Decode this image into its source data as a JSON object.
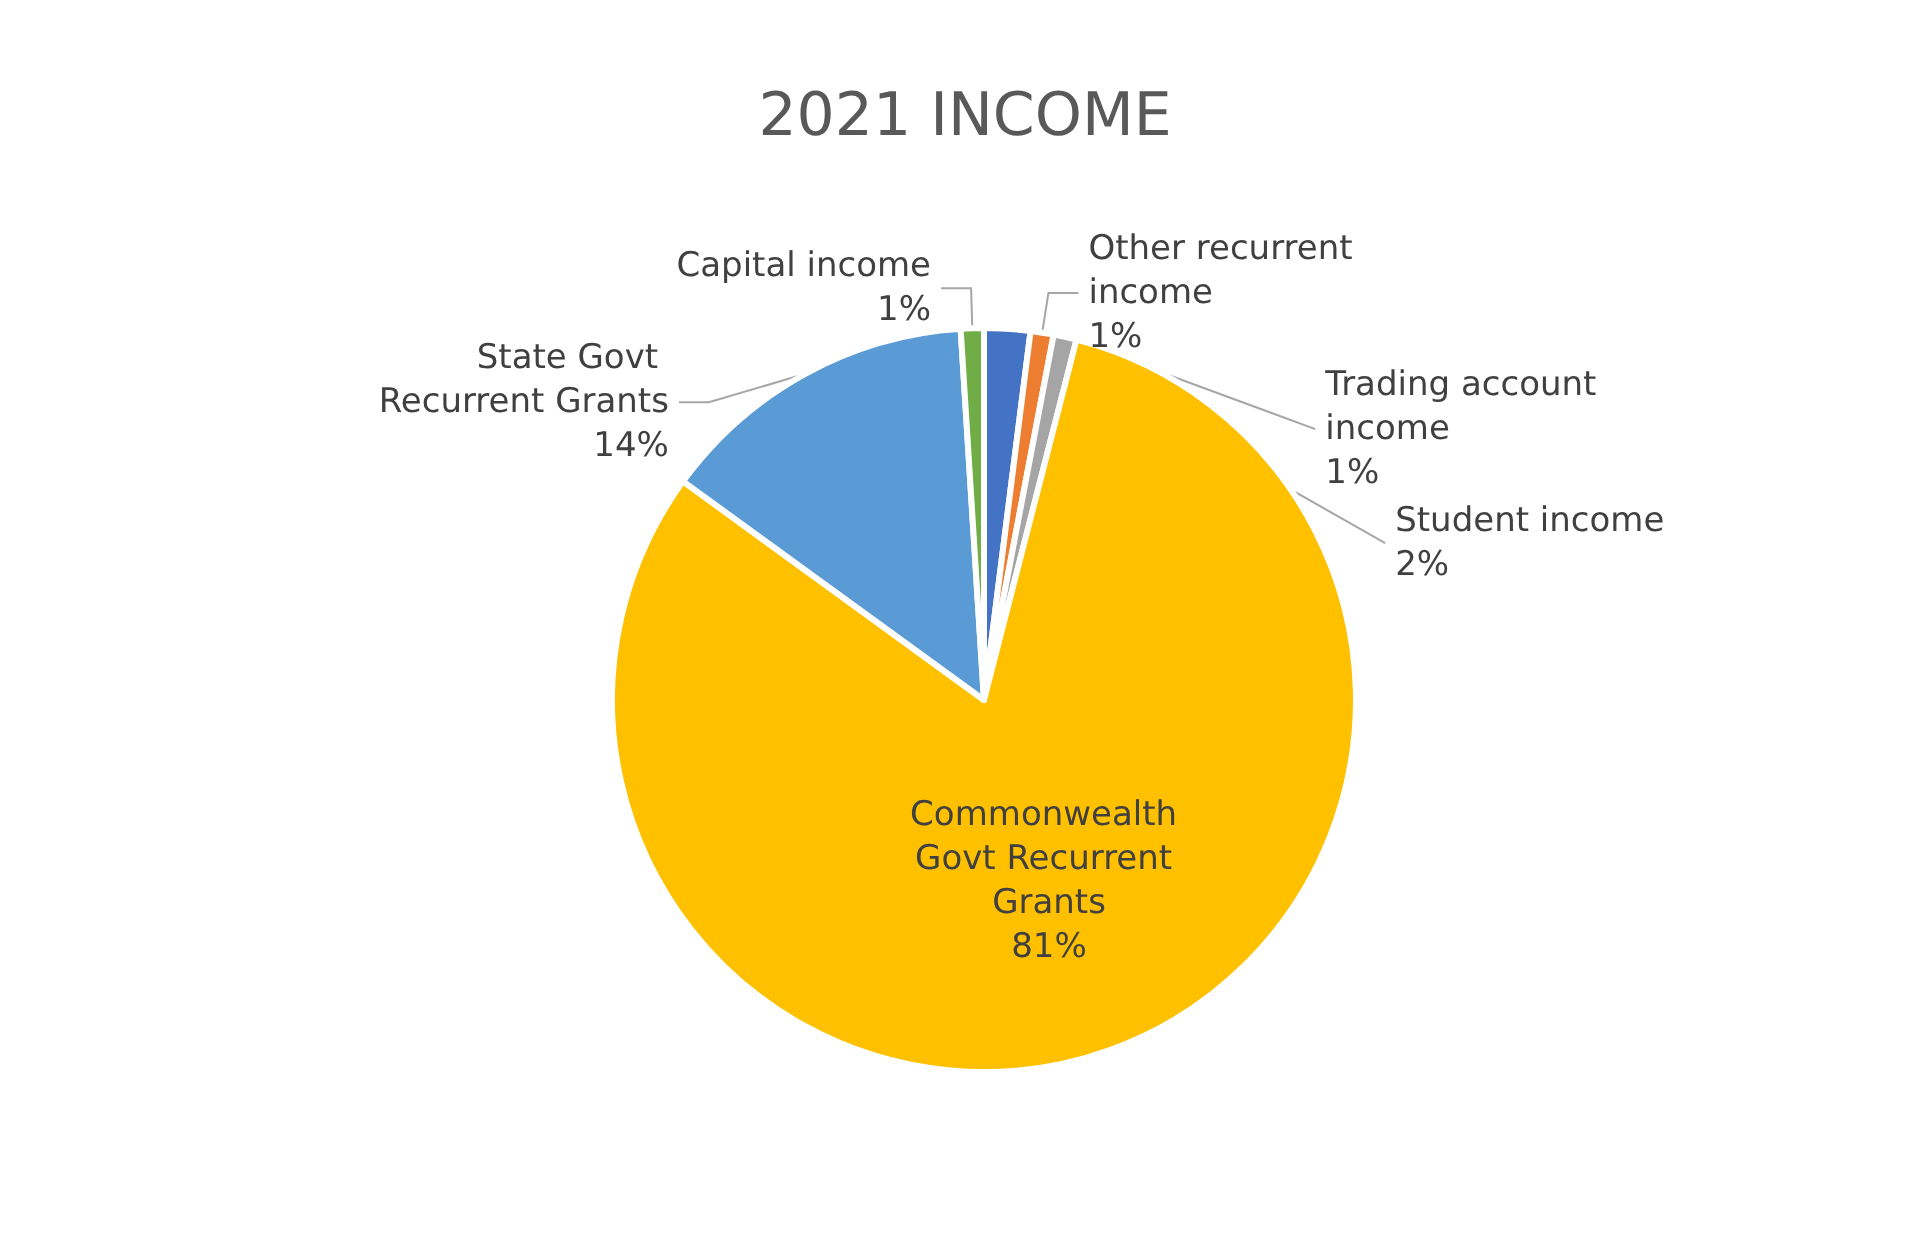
{
  "chart_data": {
    "type": "pie",
    "title": "2021 INCOME",
    "categories": [
      "Student income",
      "Other recurrent income",
      "Trading account income",
      "Commonwealth Govt Recurrent Grants",
      "State Govt Recurrent Grants",
      "Capital income"
    ],
    "values": [
      2,
      1,
      1,
      81,
      14,
      1
    ],
    "colors": [
      "#4472c4",
      "#ed7d31",
      "#a5a5a5",
      "#ffc000",
      "#5b9bd5",
      "#70ad47"
    ],
    "value_labels": [
      "2%",
      "1%",
      "1%",
      "81%",
      "14%",
      "1%"
    ],
    "legend": false
  }
}
